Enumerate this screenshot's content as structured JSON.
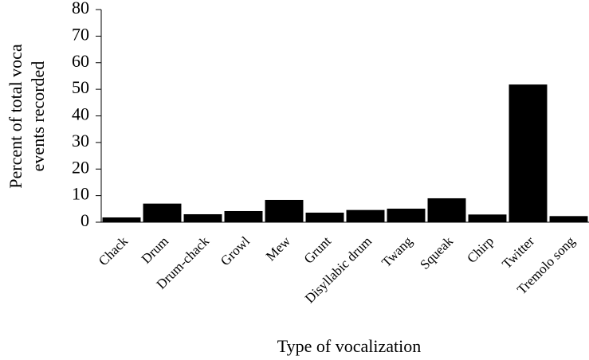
{
  "chart_data": {
    "type": "bar",
    "ylabel": [
      "Percent of total voca",
      "events recorded"
    ],
    "xlabel": "Type of vocalization",
    "categories": [
      "Chack",
      "Drum",
      "Drum-chack",
      "Growl",
      "Mew",
      "Grunt",
      "Disyllabic drum",
      "Twang",
      "Squeak",
      "Chirp",
      "Twitter",
      "Tremolo song"
    ],
    "values": [
      1.8,
      7,
      3,
      4.2,
      8.4,
      3.6,
      4.6,
      5.1,
      9,
      2.9,
      51.8,
      2.3
    ],
    "color": "#000000",
    "ylim": [
      0,
      80
    ],
    "yticks": [
      0,
      10,
      20,
      30,
      40,
      50,
      60,
      70,
      80
    ],
    "grid": false
  }
}
